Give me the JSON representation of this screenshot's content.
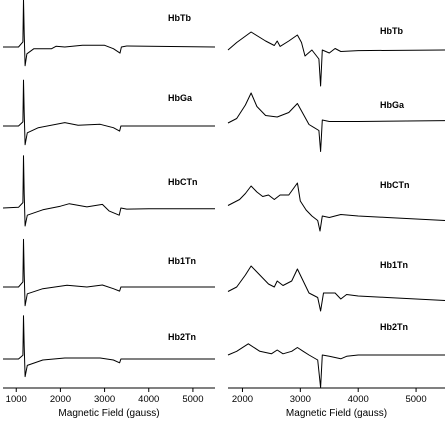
{
  "chart_data": [
    {
      "type": "line",
      "panel": "left",
      "xlabel": "Magnetic Field (gauss)",
      "ylabel": "",
      "xlim": [
        700,
        5500
      ],
      "xticks": [
        1000,
        2000,
        3000,
        4000,
        5000
      ],
      "grid": false,
      "series": [
        {
          "name": "HbTb",
          "points": [
            [
              700,
              0
            ],
            [
              1050,
              0
            ],
            [
              1150,
              0.15
            ],
            [
              1165,
              1.4
            ],
            [
              1180,
              0.4
            ],
            [
              1200,
              -0.55
            ],
            [
              1240,
              -0.2
            ],
            [
              1400,
              -0.05
            ],
            [
              1800,
              -0.05
            ],
            [
              1900,
              0.02
            ],
            [
              2100,
              0.0
            ],
            [
              2500,
              0.05
            ],
            [
              3000,
              0.05
            ],
            [
              3200,
              -0.05
            ],
            [
              3350,
              -0.18
            ],
            [
              3380,
              0.0
            ],
            [
              3500,
              0.03
            ],
            [
              4000,
              0.02
            ],
            [
              5500,
              0.0
            ]
          ]
        },
        {
          "name": "HbGa",
          "points": [
            [
              700,
              0
            ],
            [
              1050,
              0
            ],
            [
              1150,
              0.12
            ],
            [
              1165,
              1.35
            ],
            [
              1180,
              0.4
            ],
            [
              1200,
              -0.55
            ],
            [
              1250,
              -0.2
            ],
            [
              1500,
              -0.05
            ],
            [
              2100,
              0.1
            ],
            [
              2400,
              0.02
            ],
            [
              2900,
              0.05
            ],
            [
              3200,
              -0.05
            ],
            [
              3340,
              -0.15
            ],
            [
              3370,
              0.0
            ],
            [
              3500,
              0.0
            ],
            [
              5500,
              0.0
            ]
          ]
        },
        {
          "name": "HbCTn",
          "points": [
            [
              700,
              0
            ],
            [
              1050,
              0.02
            ],
            [
              1150,
              0.15
            ],
            [
              1165,
              1.45
            ],
            [
              1180,
              0.4
            ],
            [
              1200,
              -0.5
            ],
            [
              1250,
              -0.2
            ],
            [
              1600,
              -0.05
            ],
            [
              2000,
              0.05
            ],
            [
              2200,
              0.12
            ],
            [
              2600,
              0.03
            ],
            [
              2950,
              0.1
            ],
            [
              3100,
              -0.08
            ],
            [
              3330,
              -0.2
            ],
            [
              3370,
              0.0
            ],
            [
              3500,
              -0.03
            ],
            [
              4000,
              -0.02
            ],
            [
              5500,
              -0.02
            ]
          ]
        },
        {
          "name": "Hb1Tn",
          "points": [
            [
              700,
              0
            ],
            [
              1050,
              0
            ],
            [
              1150,
              0.15
            ],
            [
              1165,
              1.4
            ],
            [
              1180,
              0.4
            ],
            [
              1200,
              -0.55
            ],
            [
              1250,
              -0.2
            ],
            [
              1600,
              -0.05
            ],
            [
              2150,
              0.05
            ],
            [
              2600,
              0.0
            ],
            [
              2950,
              0.06
            ],
            [
              3200,
              -0.05
            ],
            [
              3340,
              -0.12
            ],
            [
              3370,
              0.0
            ],
            [
              5500,
              0.0
            ]
          ]
        },
        {
          "name": "Hb2Tn",
          "points": [
            [
              700,
              0
            ],
            [
              1050,
              0
            ],
            [
              1150,
              0.12
            ],
            [
              1165,
              1.35
            ],
            [
              1180,
              0.4
            ],
            [
              1200,
              -0.55
            ],
            [
              1250,
              -0.2
            ],
            [
              1600,
              -0.03
            ],
            [
              2100,
              0.03
            ],
            [
              2900,
              0.03
            ],
            [
              3200,
              -0.03
            ],
            [
              3340,
              -0.12
            ],
            [
              3370,
              0.0
            ],
            [
              5500,
              0.0
            ]
          ]
        }
      ]
    },
    {
      "type": "line",
      "panel": "right",
      "xlabel": "Magnetic Field (gauss)",
      "ylabel": "",
      "xlim": [
        1750,
        5500
      ],
      "xticks": [
        2000,
        3000,
        4000,
        5000
      ],
      "grid": false,
      "series": [
        {
          "name": "HbTb",
          "points": [
            [
              1750,
              0
            ],
            [
              1900,
              0.25
            ],
            [
              2150,
              0.6
            ],
            [
              2400,
              0.3
            ],
            [
              2550,
              0.15
            ],
            [
              2600,
              0.3
            ],
            [
              2650,
              0.12
            ],
            [
              2800,
              0.3
            ],
            [
              2950,
              0.5
            ],
            [
              3020,
              0.25
            ],
            [
              3080,
              -0.2
            ],
            [
              3200,
              0.0
            ],
            [
              3320,
              -0.3
            ],
            [
              3350,
              -1.2
            ],
            [
              3380,
              0.0
            ],
            [
              3500,
              -0.1
            ],
            [
              3600,
              0.05
            ],
            [
              3700,
              -0.05
            ],
            [
              4000,
              -0.02
            ],
            [
              5500,
              0.0
            ]
          ]
        },
        {
          "name": "HbGa",
          "points": [
            [
              1750,
              -0.1
            ],
            [
              1900,
              0.05
            ],
            [
              2050,
              0.5
            ],
            [
              2150,
              0.9
            ],
            [
              2250,
              0.45
            ],
            [
              2400,
              0.15
            ],
            [
              2600,
              0.1
            ],
            [
              2800,
              0.25
            ],
            [
              2950,
              0.55
            ],
            [
              3050,
              0.2
            ],
            [
              3150,
              -0.15
            ],
            [
              3320,
              -0.35
            ],
            [
              3350,
              -1.05
            ],
            [
              3380,
              0.0
            ],
            [
              3500,
              -0.05
            ],
            [
              4000,
              -0.05
            ],
            [
              5500,
              -0.02
            ]
          ]
        },
        {
          "name": "HbCTn",
          "points": [
            [
              1750,
              0.15
            ],
            [
              1850,
              0.25
            ],
            [
              1950,
              0.35
            ],
            [
              2050,
              0.55
            ],
            [
              2150,
              0.8
            ],
            [
              2250,
              0.6
            ],
            [
              2350,
              0.45
            ],
            [
              2450,
              0.5
            ],
            [
              2550,
              0.35
            ],
            [
              2650,
              0.5
            ],
            [
              2800,
              0.5
            ],
            [
              2950,
              0.9
            ],
            [
              3000,
              0.3
            ],
            [
              3100,
              0.0
            ],
            [
              3200,
              -0.2
            ],
            [
              3300,
              -0.35
            ],
            [
              3340,
              -0.7
            ],
            [
              3380,
              -0.2
            ],
            [
              3500,
              -0.25
            ],
            [
              3700,
              -0.15
            ],
            [
              4000,
              -0.2
            ],
            [
              4500,
              -0.25
            ],
            [
              5000,
              -0.3
            ],
            [
              5500,
              -0.35
            ]
          ]
        },
        {
          "name": "Hb1Tn",
          "points": [
            [
              1750,
              -0.05
            ],
            [
              1900,
              0.1
            ],
            [
              2050,
              0.5
            ],
            [
              2150,
              0.8
            ],
            [
              2300,
              0.5
            ],
            [
              2450,
              0.2
            ],
            [
              2550,
              0.1
            ],
            [
              2600,
              0.3
            ],
            [
              2700,
              0.15
            ],
            [
              2850,
              0.3
            ],
            [
              2950,
              0.7
            ],
            [
              3050,
              0.3
            ],
            [
              3150,
              -0.1
            ],
            [
              3300,
              -0.25
            ],
            [
              3350,
              -0.7
            ],
            [
              3400,
              -0.1
            ],
            [
              3600,
              -0.1
            ],
            [
              3700,
              -0.3
            ],
            [
              3800,
              -0.15
            ],
            [
              4000,
              -0.2
            ],
            [
              4500,
              -0.25
            ],
            [
              5000,
              -0.3
            ],
            [
              5500,
              -0.35
            ]
          ]
        },
        {
          "name": "Hb2Tn",
          "points": [
            [
              1750,
              0
            ],
            [
              1900,
              0.15
            ],
            [
              2100,
              0.45
            ],
            [
              2300,
              0.15
            ],
            [
              2500,
              0.05
            ],
            [
              2600,
              0.2
            ],
            [
              2700,
              0.05
            ],
            [
              2850,
              0.15
            ],
            [
              2950,
              0.3
            ],
            [
              3050,
              0.15
            ],
            [
              3150,
              0.0
            ],
            [
              3300,
              -0.2
            ],
            [
              3350,
              -1.3
            ],
            [
              3380,
              0.0
            ],
            [
              3500,
              -0.05
            ],
            [
              3700,
              -0.15
            ],
            [
              3800,
              -0.05
            ],
            [
              4000,
              0.0
            ],
            [
              5500,
              0.0
            ]
          ]
        }
      ]
    }
  ]
}
